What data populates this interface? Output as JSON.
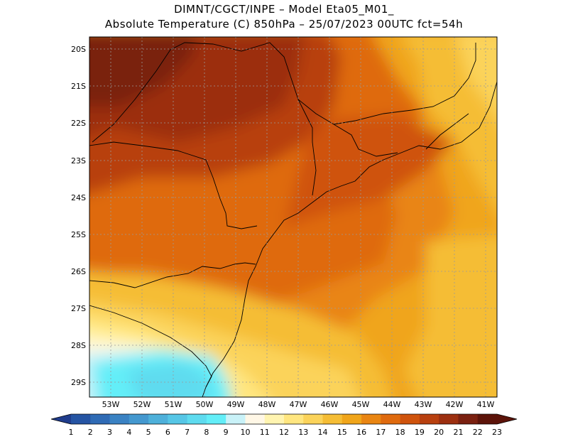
{
  "header": {
    "line1": "DIMNT/CGCT/INPE –  Model Eta05_M01_",
    "line2": "Absolute Temperature (C) 850hPa –  25/07/2023 00UTC fct=54h"
  },
  "map": {
    "lat_labels": [
      "20S",
      "21S",
      "22S",
      "23S",
      "24S",
      "25S",
      "26S",
      "27S",
      "28S",
      "29S"
    ],
    "lon_labels": [
      "53W",
      "52W",
      "51W",
      "50W",
      "49W",
      "48W",
      "47W",
      "46W",
      "45W",
      "44W",
      "43W",
      "42W",
      "41W"
    ]
  },
  "colorbar": {
    "labels": [
      "1",
      "2",
      "3",
      "4",
      "5",
      "6",
      "7",
      "8",
      "9",
      "10",
      "11",
      "12",
      "13",
      "14",
      "15",
      "16",
      "17",
      "18",
      "19",
      "20",
      "21",
      "22",
      "23"
    ],
    "colors": [
      "#1f3c8c",
      "#2554a3",
      "#2f6bb5",
      "#3a82c3",
      "#4498cf",
      "#4eb0da",
      "#56c6e6",
      "#5edbef",
      "#63eef8",
      "#c9f2f8",
      "#fff7e6",
      "#fff4b0",
      "#ffe680",
      "#fbd35a",
      "#f5bd35",
      "#f0a51a",
      "#e98512",
      "#df6a0e",
      "#cf530d",
      "#b8400f",
      "#9c2f10",
      "#7a2010",
      "#5c1309"
    ]
  },
  "colors": {
    "grid": "#9a9a9a",
    "border": "#000000"
  }
}
